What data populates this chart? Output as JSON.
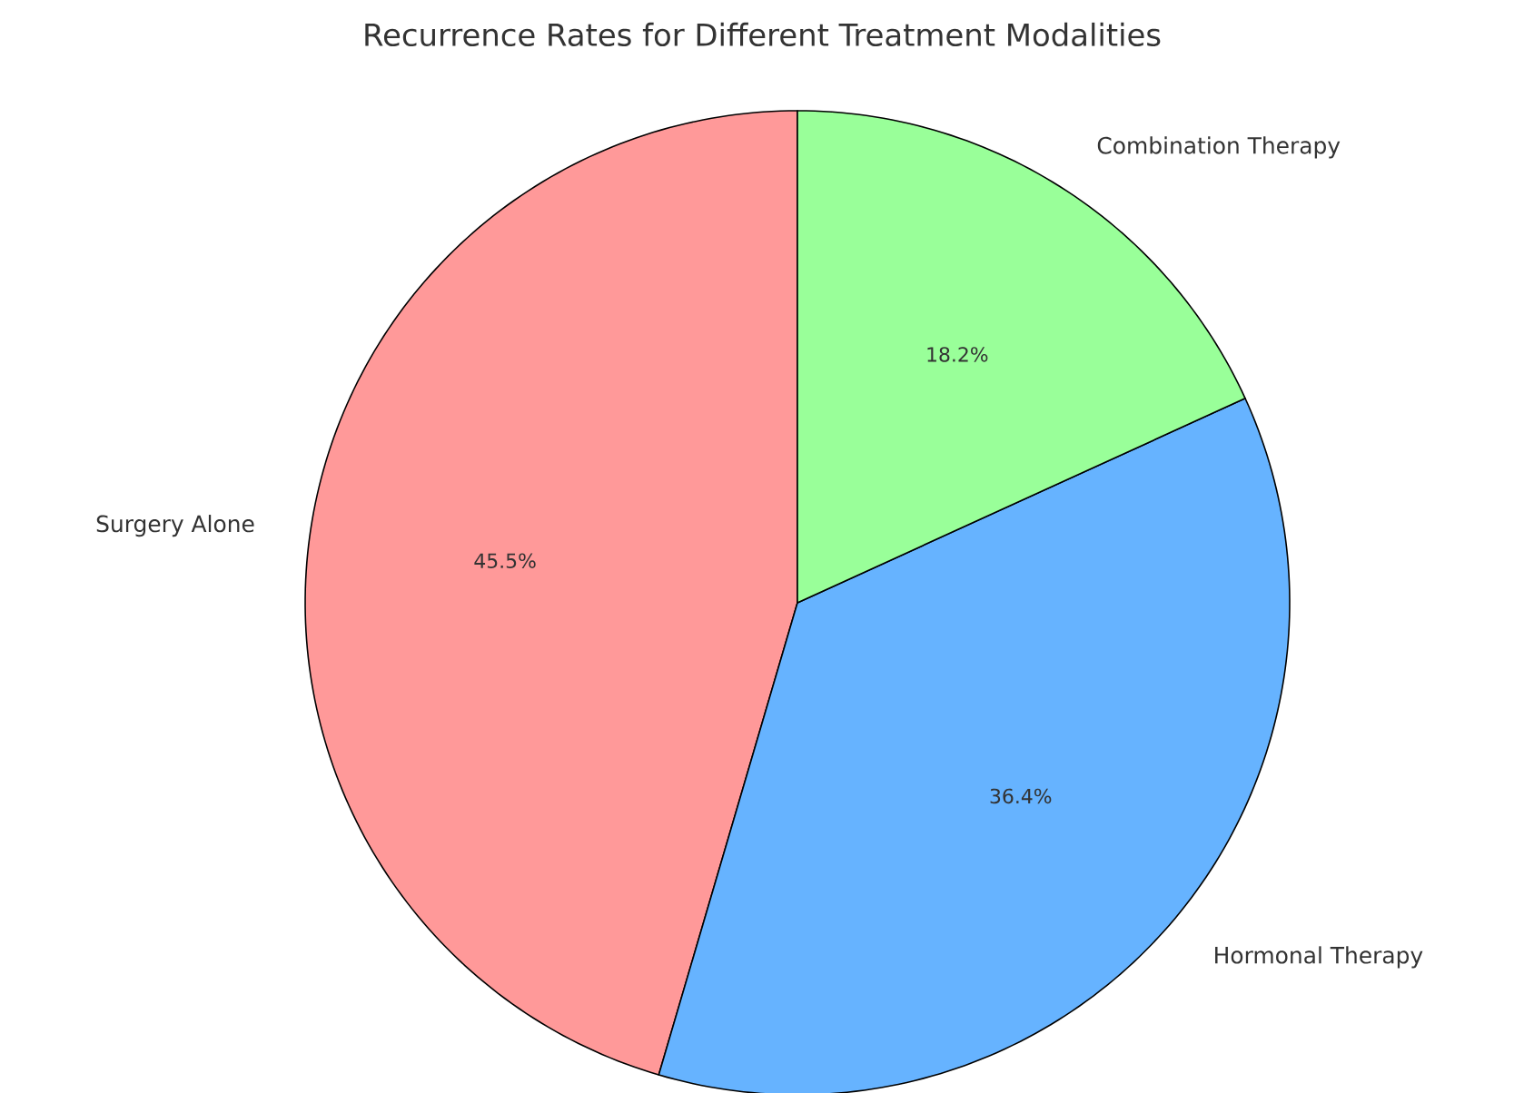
{
  "chart_data": {
    "type": "pie",
    "title": "Recurrence Rates for Different Treatment Modalities",
    "categories": [
      "Surgery Alone",
      "Hormonal Therapy",
      "Combination Therapy"
    ],
    "values": [
      45.5,
      36.4,
      18.2
    ],
    "colors": [
      "#ff9999",
      "#66b3ff",
      "#99ff99"
    ],
    "value_labels": [
      "45.5%",
      "36.4%",
      "18.2%"
    ]
  }
}
